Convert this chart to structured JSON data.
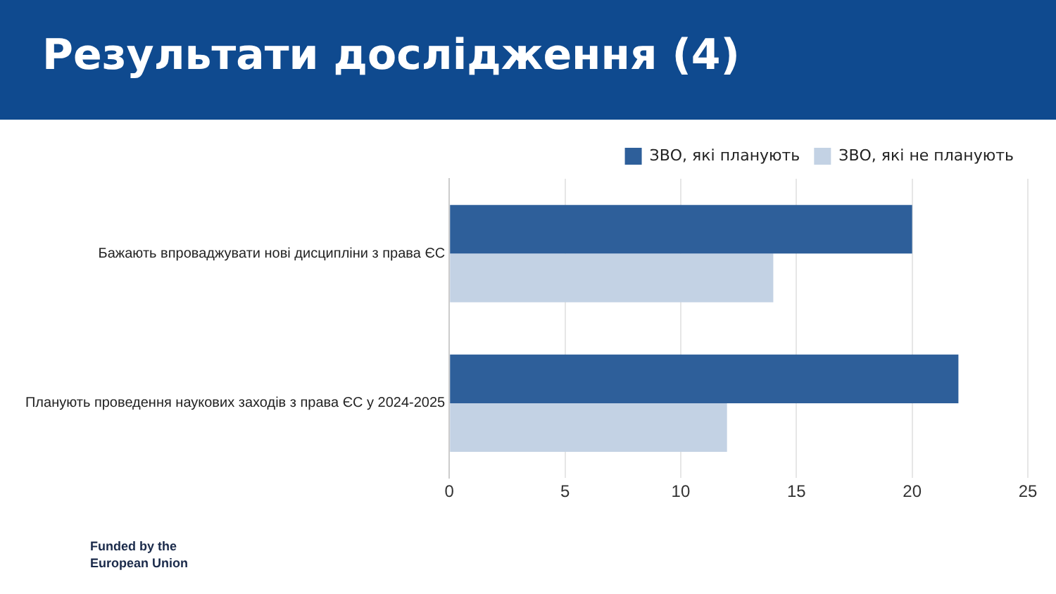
{
  "chart_data": {
    "type": "bar",
    "orientation": "horizontal",
    "title": "Результати дослідження (4)",
    "categories": [
      "Бажають впроваджувати нові дисципліни з права ЄС",
      "Планують проведення наукових заходів з права ЄС у 2024-2025"
    ],
    "series": [
      {
        "name": "ЗВО, які планують",
        "color": "#2e5f9a",
        "values": [
          20,
          22
        ]
      },
      {
        "name": "ЗВО, які не планують",
        "color": "#c3d2e4",
        "values": [
          14,
          12
        ]
      }
    ],
    "xlim": [
      0,
      25
    ],
    "xticks": [
      0,
      5,
      10,
      15,
      20,
      25
    ],
    "grid": "x",
    "legend": "top right",
    "annotations": [
      "Funded by the European Union"
    ]
  }
}
